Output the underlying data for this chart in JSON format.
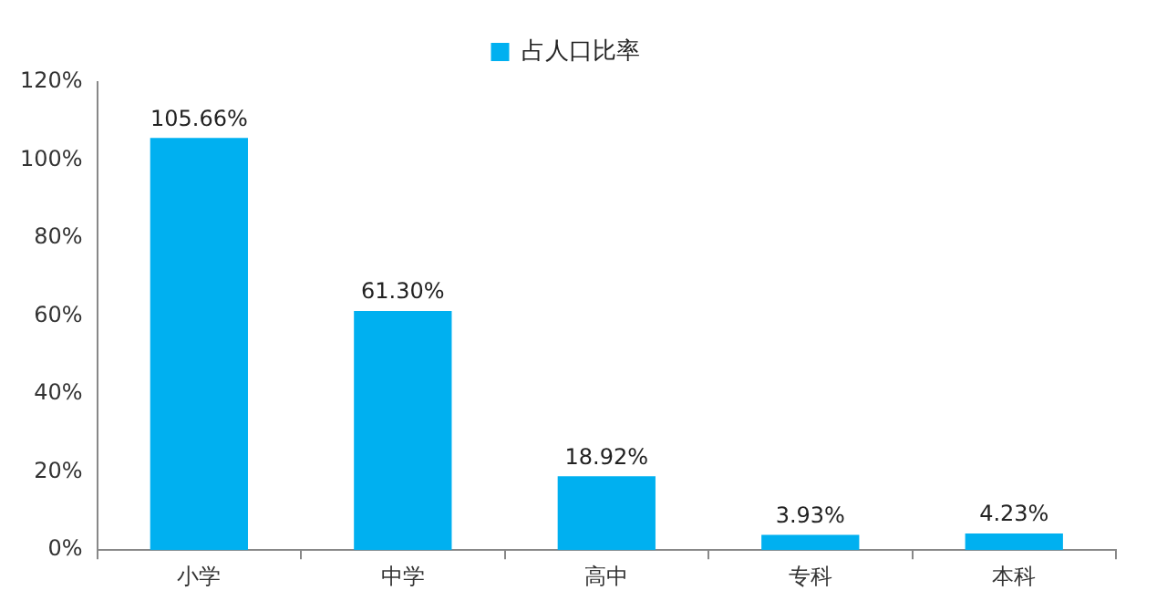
{
  "chart_data": {
    "type": "bar",
    "categories": [
      "小学",
      "中学",
      "高中",
      "专科",
      "本科"
    ],
    "series": [
      {
        "name": "占人口比率",
        "color": "#00b0f0",
        "values": [
          105.66,
          61.3,
          18.92,
          3.93,
          4.23
        ],
        "value_labels": [
          "105.66%",
          "61.30%",
          "18.92%",
          "3.93%",
          "4.23%"
        ]
      }
    ],
    "ylim": [
      0,
      120
    ],
    "yticks": [
      {
        "value": 0,
        "label": "0%"
      },
      {
        "value": 20,
        "label": "20%"
      },
      {
        "value": 40,
        "label": "40%"
      },
      {
        "value": 60,
        "label": "60%"
      },
      {
        "value": 80,
        "label": "80%"
      },
      {
        "value": 100,
        "label": "100%"
      },
      {
        "value": 120,
        "label": "120%"
      }
    ],
    "grid": false,
    "legend": "top"
  }
}
